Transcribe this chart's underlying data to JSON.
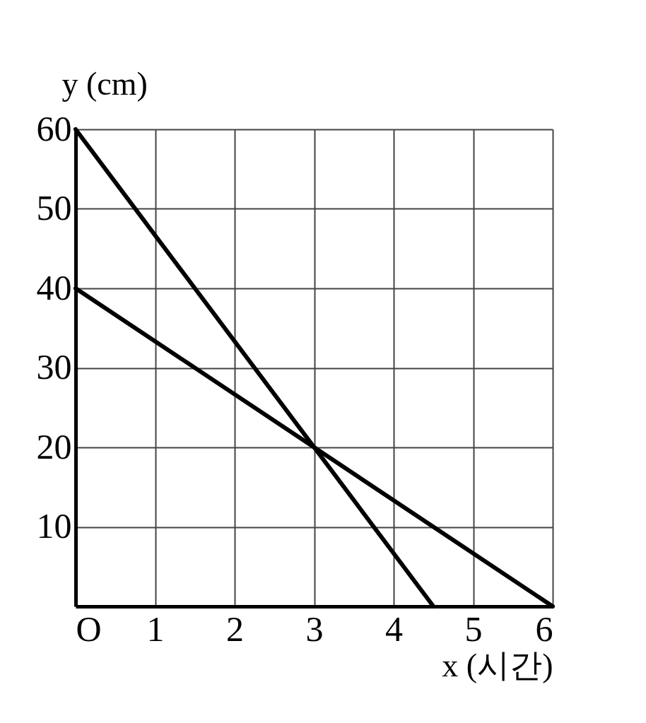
{
  "chart_data": {
    "type": "line",
    "xlabel": "x (시간)",
    "ylabel": "y (cm)",
    "xlim": [
      0,
      6
    ],
    "ylim": [
      0,
      60
    ],
    "xticks": [
      {
        "value": 0,
        "label": "O"
      },
      1,
      2,
      3,
      4,
      5,
      6
    ],
    "yticks": [
      10,
      20,
      30,
      40,
      50,
      60
    ],
    "grid": true,
    "marker": "none",
    "line_style": "solid",
    "series": [
      {
        "color": "#000000",
        "x": [
          0,
          4.5
        ],
        "values": [
          60,
          0
        ]
      },
      {
        "color": "#000000",
        "x": [
          0,
          6
        ],
        "values": [
          40,
          0
        ]
      }
    ]
  }
}
